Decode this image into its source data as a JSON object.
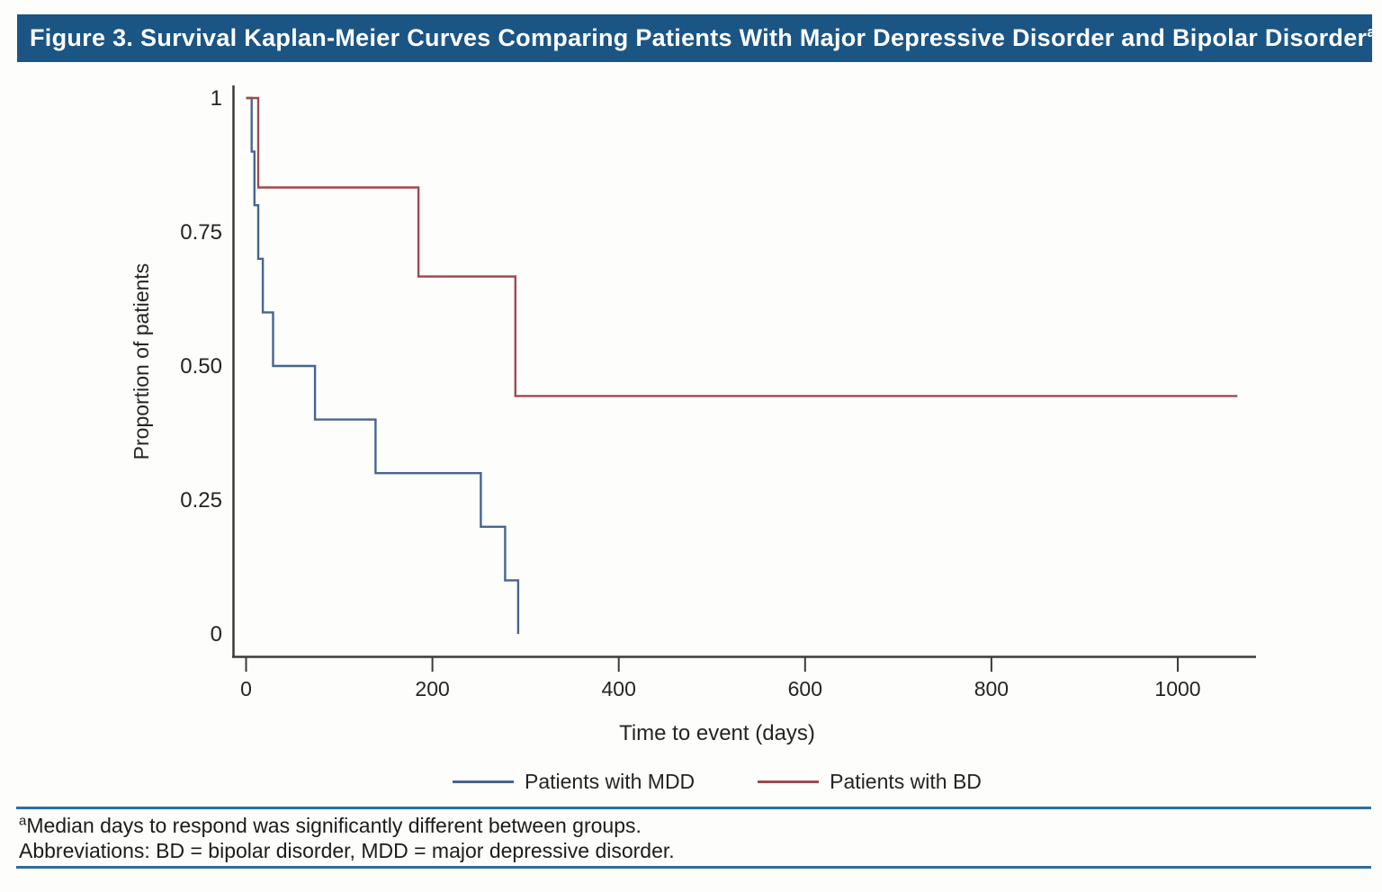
{
  "figure": {
    "title": "Figure 3. Survival Kaplan-Meier Curves Comparing Patients With Major Depressive Disorder and Bipolar Disorder",
    "title_superscript": "a"
  },
  "footnotes": {
    "note_superscript": "a",
    "note": "Median days to respond was significantly different between groups.",
    "abbreviations": "Abbreviations: BD = bipolar disorder, MDD = major depressive disorder."
  },
  "colors": {
    "header_bg": "#1B5584",
    "header_text": "#FFFFFF",
    "rule_blue": "#2F6E9E",
    "axis": "#3B3B3B",
    "tick_text": "#242424",
    "mdd_line": "#47658F",
    "bd_line": "#9D4A50"
  },
  "chart_data": {
    "type": "line",
    "subtype": "kaplan-meier-step",
    "title": "",
    "xlabel": "Time to event (days)",
    "ylabel": "Proportion of patients",
    "xlim": [
      0,
      1085
    ],
    "ylim": [
      0,
      1
    ],
    "grid": false,
    "legend_position": "bottom",
    "x_ticks": [
      0,
      200,
      400,
      600,
      800,
      1000
    ],
    "y_ticks": [
      1,
      0.75,
      0.5,
      0.25,
      0
    ],
    "y_tick_labels": [
      "1",
      "0.75",
      "0.50",
      "0.25",
      "0"
    ],
    "series": [
      {
        "name": "Patients with MDD",
        "color": "#47658F",
        "steps": [
          [
            0,
            1
          ],
          [
            6,
            0.9
          ],
          [
            9,
            0.8
          ],
          [
            13,
            0.7
          ],
          [
            18,
            0.6
          ],
          [
            29,
            0.5
          ],
          [
            74,
            0.4
          ],
          [
            139,
            0.3
          ],
          [
            252,
            0.2
          ],
          [
            278,
            0.1
          ],
          [
            292,
            0
          ]
        ],
        "end_x": 292
      },
      {
        "name": "Patients with BD",
        "color": "#9D4A50",
        "steps": [
          [
            0,
            1
          ],
          [
            13,
            0.833
          ],
          [
            185,
            0.667
          ],
          [
            289,
            0.444
          ]
        ],
        "end_x": 1064
      }
    ]
  }
}
